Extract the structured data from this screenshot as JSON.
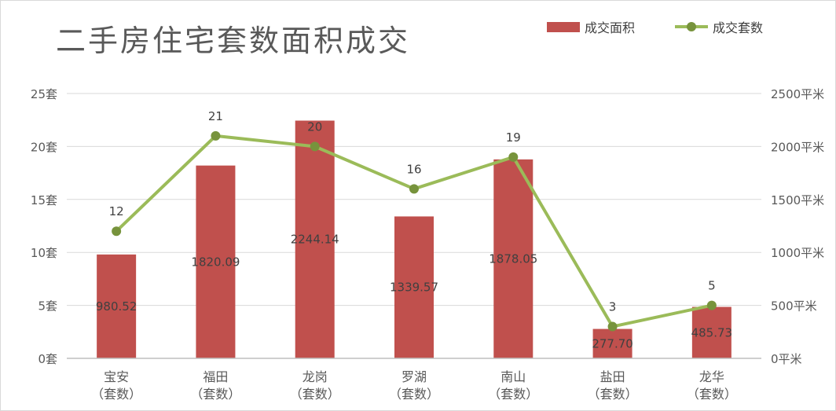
{
  "chart_data": {
    "type": "bar",
    "title": "二手房住宅套数面积成交",
    "categories": [
      [
        "宝安",
        "（套数）"
      ],
      [
        "福田",
        "（套数）"
      ],
      [
        "龙岗",
        "（套数）"
      ],
      [
        "罗湖",
        "（套数）"
      ],
      [
        "南山",
        "（套数）"
      ],
      [
        "盐田",
        "（套数）"
      ],
      [
        "龙华",
        "（套数）"
      ]
    ],
    "series": [
      {
        "name": "成交面积",
        "kind": "bar",
        "axis": "right",
        "color": "#c0504d",
        "values": [
          980.52,
          1820.09,
          2244.14,
          1339.57,
          1878.05,
          277.7,
          485.73
        ],
        "labels": [
          "980.52",
          "1820.09",
          "2244.14",
          "1339.57",
          "1878.05",
          "277.70",
          "485.73"
        ]
      },
      {
        "name": "成交套数",
        "kind": "line",
        "axis": "left",
        "color": "#9bbb59",
        "marker_color": "#77933c",
        "values": [
          12,
          21,
          20,
          16,
          19,
          3,
          5
        ],
        "labels": [
          "12",
          "21",
          "20",
          "16",
          "19",
          "3",
          "5"
        ]
      }
    ],
    "y_left": {
      "ylim": [
        0,
        25
      ],
      "ticks": [
        0,
        5,
        10,
        15,
        20,
        25
      ],
      "tick_labels": [
        "0套",
        "5套",
        "10套",
        "15套",
        "20套",
        "25套"
      ]
    },
    "y_right": {
      "ylim": [
        0,
        2500
      ],
      "ticks": [
        0,
        500,
        1000,
        1500,
        2000,
        2500
      ],
      "tick_labels": [
        "0平米",
        "500平米",
        "1000平米",
        "1500平米",
        "2000平米",
        "2500平米"
      ]
    },
    "grid": true,
    "legend": "top-right"
  }
}
